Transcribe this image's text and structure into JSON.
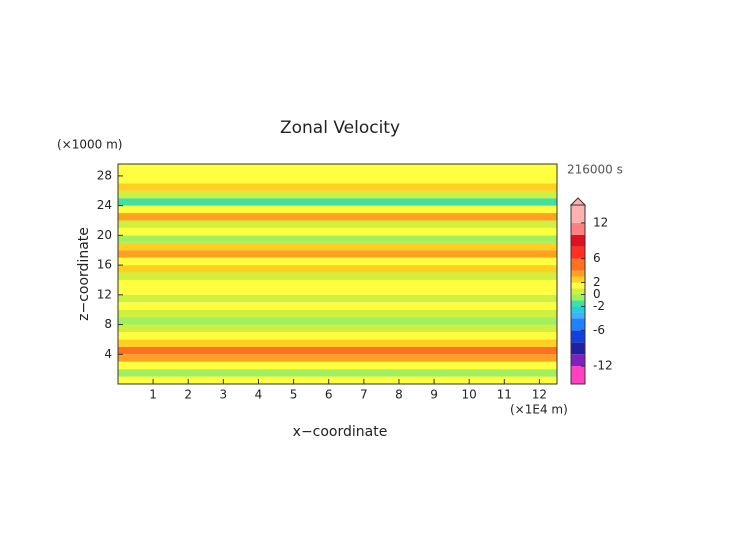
{
  "chart_data": {
    "type": "contour",
    "title": "Zonal Velocity",
    "time_label": "216000 s",
    "x_label": "x−coordinate",
    "y_label": "z−coordinate",
    "x_unit": "(×1E4 m)",
    "y_unit": "(×1000 m)",
    "xlim": [
      0,
      12.5
    ],
    "ylim": [
      0,
      29.6
    ],
    "xticks": [
      1,
      2,
      3,
      4,
      5,
      6,
      7,
      8,
      9,
      10,
      11,
      12
    ],
    "yticks": [
      4,
      8,
      12,
      16,
      20,
      24,
      28
    ],
    "ybins": [
      0,
      1,
      2,
      3,
      4,
      5,
      6,
      7,
      8,
      9,
      10,
      11,
      12,
      13,
      14,
      15,
      16,
      17,
      18,
      19,
      20,
      21,
      22,
      23,
      24,
      25,
      26,
      27,
      28,
      29,
      29.6
    ],
    "values": [
      1,
      -1,
      1,
      3,
      4,
      2,
      1,
      0.5,
      -0.5,
      0.5,
      1,
      0.5,
      1.5,
      1,
      0.5,
      2,
      1,
      3,
      2,
      -1,
      1.5,
      0,
      3,
      1,
      -2,
      0.5,
      2.5,
      1.5,
      1,
      1
    ],
    "colorbar": {
      "clim": [
        -15,
        15
      ],
      "levels": [
        -15,
        -12,
        -10,
        -8,
        -6,
        -4,
        -3,
        -2,
        -1,
        0,
        1,
        2,
        3,
        4,
        6,
        8,
        10,
        12,
        15
      ],
      "colors": [
        "#ff40c0",
        "#8020c0",
        "#2020a0",
        "#1040e0",
        "#2080ff",
        "#40b0ff",
        "#20d0e0",
        "#40e0a0",
        "#a0f060",
        "#d0f040",
        "#ffff40",
        "#ffd020",
        "#ffa020",
        "#ff7020",
        "#ff3020",
        "#e01020",
        "#ff8080",
        "#ffb0b0"
      ],
      "ticks": [
        -12,
        -6,
        -2,
        0,
        2,
        6,
        12
      ]
    }
  }
}
